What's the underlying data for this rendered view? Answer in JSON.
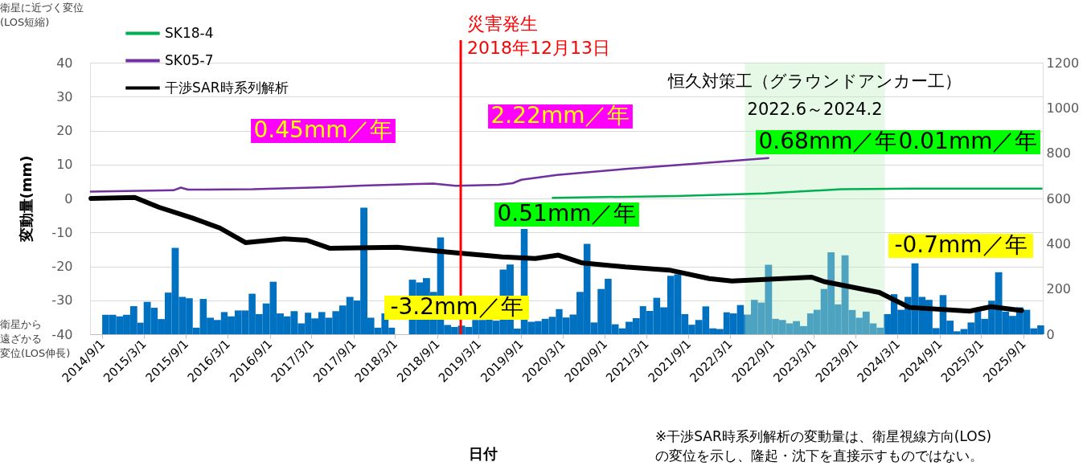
{
  "chart_data": {
    "type": "line",
    "xlabel": "日付",
    "ylabel": "変動量(mm)",
    "xlim": [
      "2014-07-10",
      "2025-11-25"
    ],
    "xticks": [
      {
        "value": "2014-09-01",
        "label": "2014/9/1"
      },
      {
        "value": "2015-03-01",
        "label": "2015/3/1"
      },
      {
        "value": "2015-09-01",
        "label": "2015/9/1"
      },
      {
        "value": "2016-03-01",
        "label": "2016/3/1"
      },
      {
        "value": "2016-09-01",
        "label": "2016/9/1"
      },
      {
        "value": "2017-03-01",
        "label": "2017/3/1"
      },
      {
        "value": "2017-09-01",
        "label": "2017/9/1"
      },
      {
        "value": "2018-03-01",
        "label": "2018/3/1"
      },
      {
        "value": "2018-09-01",
        "label": "2018/9/1"
      },
      {
        "value": "2019-03-01",
        "label": "2019/3/1"
      },
      {
        "value": "2019-09-01",
        "label": "2019/9/1"
      },
      {
        "value": "2020-03-01",
        "label": "2020/3/1"
      },
      {
        "value": "2020-09-01",
        "label": "2020/9/1"
      },
      {
        "value": "2021-03-01",
        "label": "2021/3/1"
      },
      {
        "value": "2021-09-01",
        "label": "2021/9/1"
      },
      {
        "value": "2022-03-01",
        "label": "2022/3/1"
      },
      {
        "value": "2022-09-01",
        "label": "2022/9/1"
      },
      {
        "value": "2023-03-01",
        "label": "2023/3/1"
      },
      {
        "value": "2023-09-01",
        "label": "2023/9/1"
      },
      {
        "value": "2024-03-01",
        "label": "2024/3/1"
      },
      {
        "value": "2024-09-01",
        "label": "2024/9/1"
      },
      {
        "value": "2025-03-01",
        "label": "2025/3/1"
      },
      {
        "value": "2025-09-01",
        "label": "2025/9/1"
      }
    ],
    "ylim": [
      -40,
      40
    ],
    "yticks": [
      -40,
      -30,
      -20,
      -10,
      0,
      10,
      20,
      30,
      40
    ],
    "y2lim": [
      0,
      1200
    ],
    "y2ticks": [
      0,
      200,
      400,
      600,
      800,
      1000,
      1200
    ],
    "grid": "y",
    "legend": "top left",
    "series": [
      {
        "name": "SK18-4",
        "color": "#00b050",
        "x": [
          "2020-01-18",
          "2021-07-10",
          "2022-08-01",
          "2023-07-01",
          "2024-05-01",
          "2025-11-20"
        ],
        "values": [
          0.2,
          0.7,
          1.5,
          2.7,
          2.9,
          2.9
        ]
      },
      {
        "name": "SK05-7",
        "color": "#7030a0",
        "x": [
          "2014-07-13",
          "2015-07-09",
          "2015-08-10",
          "2015-09-10",
          "2016-06-18",
          "2017-05-01",
          "2017-10-10",
          "2018-08-15",
          "2018-11-21",
          "2019-05-28",
          "2019-07-28",
          "2019-09-03",
          "2020-02-06",
          "2020-12-01",
          "2021-10-12",
          "2022-08-16"
        ],
        "values": [
          2.0,
          2.4,
          3.2,
          2.6,
          2.7,
          3.3,
          3.8,
          4.4,
          3.7,
          4.0,
          4.5,
          5.5,
          6.9,
          8.7,
          10.3,
          11.9
        ]
      },
      {
        "name": "干渉SAR時系列解析",
        "color": "#000000",
        "x": [
          "2014-07-14",
          "2015-01-21",
          "2015-05-07",
          "2015-09-27",
          "2016-01-27",
          "2016-05-18",
          "2016-11-03",
          "2017-02-09",
          "2017-05-22",
          "2018-03-12",
          "2018-11-06",
          "2019-06-12",
          "2019-11-03",
          "2020-02-12",
          "2020-05-27",
          "2020-12-01",
          "2021-06-10",
          "2021-12-01",
          "2022-03-10",
          "2023-02-21",
          "2023-04-16",
          "2023-12-13",
          "2024-04-22",
          "2025-01-10",
          "2025-04-13",
          "2025-08-25"
        ],
        "values": [
          0.0,
          0.3,
          -2.6,
          -5.7,
          -8.7,
          -13.0,
          -11.9,
          -12.3,
          -14.7,
          -14.4,
          -15.9,
          -17.2,
          -17.7,
          -16.7,
          -19.0,
          -20.2,
          -21.1,
          -23.6,
          -24.3,
          -23.2,
          -24.5,
          -27.7,
          -32.1,
          -33.2,
          -31.9,
          -33.0
        ]
      },
      {
        "type": "bar",
        "axis": "y2",
        "color": "#0070c0",
        "x": [
          "2014-09",
          "2014-10",
          "2014-11",
          "2014-12",
          "2015-01",
          "2015-02",
          "2015-03",
          "2015-04",
          "2015-05",
          "2015-06",
          "2015-07",
          "2015-08",
          "2015-09",
          "2015-10",
          "2015-11",
          "2015-12",
          "2016-01",
          "2016-02",
          "2016-03",
          "2016-04",
          "2016-05",
          "2016-06",
          "2016-07",
          "2016-08",
          "2016-09",
          "2016-10",
          "2016-11",
          "2016-12",
          "2017-01",
          "2017-02",
          "2017-03",
          "2017-04",
          "2017-05",
          "2017-06",
          "2017-07",
          "2017-08",
          "2017-09",
          "2017-10",
          "2017-11",
          "2017-12",
          "2018-01",
          "2018-02",
          "2018-03",
          "2018-04",
          "2018-05",
          "2018-06",
          "2018-07",
          "2018-08",
          "2018-09",
          "2018-10",
          "2018-11",
          "2018-12",
          "2019-01",
          "2019-02",
          "2019-03",
          "2019-04",
          "2019-05",
          "2019-06",
          "2019-07",
          "2019-08",
          "2019-09",
          "2019-10",
          "2019-11",
          "2019-12",
          "2020-01",
          "2020-02",
          "2020-03",
          "2020-04",
          "2020-05",
          "2020-06",
          "2020-07",
          "2020-08",
          "2020-09",
          "2020-10",
          "2020-11",
          "2020-12",
          "2021-01",
          "2021-02",
          "2021-03",
          "2021-04",
          "2021-05",
          "2021-06",
          "2021-07",
          "2021-08",
          "2021-09",
          "2021-10",
          "2021-11",
          "2021-12",
          "2022-01",
          "2022-02",
          "2022-03",
          "2022-04",
          "2022-05",
          "2022-06",
          "2022-07",
          "2022-08",
          "2022-09",
          "2022-10",
          "2022-11",
          "2022-12",
          "2023-01",
          "2023-02",
          "2023-03",
          "2023-04",
          "2023-05",
          "2023-06",
          "2023-07",
          "2023-08",
          "2023-09",
          "2023-10",
          "2023-11",
          "2023-12",
          "2024-01",
          "2024-02",
          "2024-03",
          "2024-04",
          "2024-05",
          "2024-06",
          "2024-07",
          "2024-08",
          "2024-09",
          "2024-10",
          "2024-11",
          "2024-12",
          "2025-01",
          "2025-02",
          "2025-03",
          "2025-04",
          "2025-05",
          "2025-06",
          "2025-07",
          "2025-08",
          "2025-09",
          "2025-10",
          "2025-11"
        ],
        "values": [
          86,
          86,
          79,
          86,
          124,
          51,
          143,
          117,
          67,
          184,
          382,
          165,
          159,
          29,
          156,
          73,
          63,
          98,
          79,
          105,
          105,
          179,
          89,
          136,
          232,
          92,
          79,
          102,
          48,
          95,
          70,
          98,
          73,
          102,
          127,
          165,
          149,
          559,
          73,
          29,
          92,
          29,
          null,
          null,
          241,
          229,
          248,
          187,
          428,
          41,
          32,
          38,
          32,
          63,
          63,
          70,
          60,
          286,
          308,
          25,
          465,
          55,
          58,
          68,
          77,
          111,
          74,
          87,
          187,
          399,
          52,
          200,
          245,
          44,
          26,
          55,
          71,
          124,
          103,
          161,
          119,
          258,
          265,
          89,
          42,
          63,
          123,
          26,
          23,
          97,
          92,
          129,
          87,
          152,
          140,
          307,
          68,
          63,
          48,
          58,
          36,
          92,
          108,
          200,
          362,
          132,
          349,
          107,
          73,
          100,
          48,
          29,
          89,
          177,
          108,
          165,
          313,
          165,
          152,
          27,
          173,
          60,
          13,
          23,
          52,
          103,
          68,
          148,
          274,
          100,
          81,
          119,
          108,
          26,
          39
        ]
      }
    ],
    "ref_lines": [
      {
        "axis": "x",
        "value": "2018-12-13",
        "label": "災害発生\n2018年12月13日",
        "color": "#ff0000"
      }
    ],
    "bands": [
      {
        "axis": "x",
        "from": "2022-05-06",
        "to": "2024-01-06",
        "label": "恒久対策工（グラウンドアンカー工）\n2022.6～2024.2",
        "color": "#c0f0c0"
      }
    ],
    "annotations": [
      "衛星に近づく変位",
      "(LOS短縮)",
      "衛星から",
      "遠ざかる",
      "変位(LOS伸長)",
      "※干渉SAR時系列解析の変動量は、衛星視線方向(LOS)",
      "の変位を示し、隆起・沈下を直接示すものではない。",
      "0.45mm／年",
      "2.22mm／年",
      "0.68mm／年",
      "0.01mm／年",
      "0.51mm／年",
      "-3.2mm／年",
      "-0.7mm／年"
    ]
  }
}
